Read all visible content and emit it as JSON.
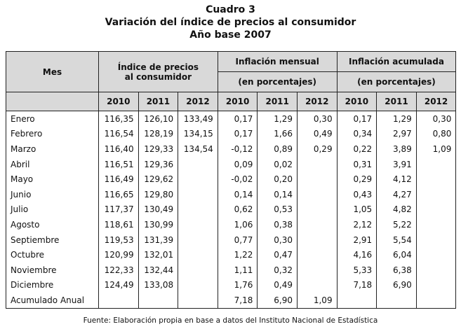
{
  "title": [
    "Cuadro 3",
    "Variación del índice de precios al consumidor",
    "Año base 2007"
  ],
  "table": {
    "corner": "Mes",
    "groups": [
      {
        "label": [
          "Índice de precios",
          "al consumidor"
        ],
        "years": [
          "2010",
          "2011",
          "2012"
        ]
      },
      {
        "label": [
          "Inflación mensual"
        ],
        "note": "(en porcentajes)",
        "years": [
          "2010",
          "2011",
          "2012"
        ]
      },
      {
        "label": [
          "Inflación acumulada"
        ],
        "note": "(en porcentajes)",
        "years": [
          "2010",
          "2011",
          "2012"
        ]
      }
    ],
    "rows": [
      {
        "mes": "Enero",
        "cells": [
          "116,35",
          "126,10",
          "133,49",
          "0,17",
          "1,29",
          "0,30",
          "0,17",
          "1,29",
          "0,30"
        ]
      },
      {
        "mes": "Febrero",
        "cells": [
          "116,54",
          "128,19",
          "134,15",
          "0,17",
          "1,66",
          "0,49",
          "0,34",
          "2,97",
          "0,80"
        ]
      },
      {
        "mes": "Marzo",
        "cells": [
          "116,40",
          "129,33",
          "134,54",
          "-0,12",
          "0,89",
          "0,29",
          "0,22",
          "3,89",
          "1,09"
        ]
      },
      {
        "mes": "Abril",
        "cells": [
          "116,51",
          "129,36",
          null,
          "0,09",
          "0,02",
          null,
          "0,31",
          "3,91",
          null
        ]
      },
      {
        "mes": "Mayo",
        "cells": [
          "116,49",
          "129,62",
          null,
          "-0,02",
          "0,20",
          null,
          "0,29",
          "4,12",
          null
        ]
      },
      {
        "mes": "Junio",
        "cells": [
          "116,65",
          "129,80",
          null,
          "0,14",
          "0,14",
          null,
          "0,43",
          "4,27",
          null
        ]
      },
      {
        "mes": "Julio",
        "cells": [
          "117,37",
          "130,49",
          null,
          "0,62",
          "0,53",
          null,
          "1,05",
          "4,82",
          null
        ]
      },
      {
        "mes": "Agosto",
        "cells": [
          "118,61",
          "130,99",
          null,
          "1,06",
          "0,38",
          null,
          "2,12",
          "5,22",
          null
        ]
      },
      {
        "mes": "Septiembre",
        "cells": [
          "119,53",
          "131,39",
          null,
          "0,77",
          "0,30",
          null,
          "2,91",
          "5,54",
          null
        ]
      },
      {
        "mes": "Octubre",
        "cells": [
          "120,99",
          "132,01",
          null,
          "1,22",
          "0,47",
          null,
          "4,16",
          "6,04",
          null
        ]
      },
      {
        "mes": "Noviembre",
        "cells": [
          "122,33",
          "132,44",
          null,
          "1,11",
          "0,32",
          null,
          "5,33",
          "6,38",
          null
        ]
      },
      {
        "mes": "Diciembre",
        "cells": [
          "124,49",
          "133,08",
          null,
          "1,76",
          "0,49",
          null,
          "7,18",
          "6,90",
          null
        ]
      },
      {
        "mes": "Acumulado Anual",
        "cells": [
          null,
          null,
          null,
          "7,18",
          "6,90",
          "1,09",
          null,
          null,
          null
        ]
      }
    ]
  },
  "footer": "Fuente: Elaboración propia en base a datos del Instituto Nacional de Estadística"
}
